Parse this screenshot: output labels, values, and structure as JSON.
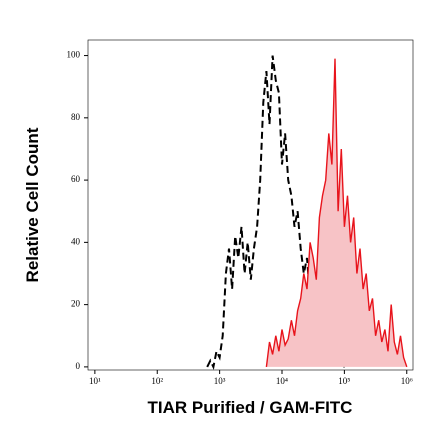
{
  "chart_data": {
    "type": "line",
    "xlabel": "TIAR Purified / GAM-FITC",
    "ylabel": "Relative Cell Count",
    "xscale": "log",
    "xlim": [
      7.76,
      1259000
    ],
    "ylim": [
      -1,
      105
    ],
    "xticks": [
      {
        "value": 10,
        "label": "10¹"
      },
      {
        "value": 100,
        "label": "10²"
      },
      {
        "value": 1000,
        "label": "10³"
      },
      {
        "value": 10000,
        "label": "10⁴"
      },
      {
        "value": 100000,
        "label": "10⁵"
      },
      {
        "value": 1000000,
        "label": "10⁶"
      }
    ],
    "yticks": [
      0,
      20,
      40,
      60,
      80,
      100
    ],
    "series": [
      {
        "color": "#000000",
        "style": "dashed",
        "fill": false,
        "x": [
          631,
          708,
          794,
          891,
          1000,
          1122,
          1259,
          1413,
          1585,
          1778,
          1995,
          2239,
          2512,
          2818,
          3162,
          3548,
          3981,
          4467,
          5012,
          5623,
          6310,
          7079,
          7943,
          8913,
          10000,
          11220,
          12589,
          14125,
          15849,
          17783,
          19953,
          22387,
          25119,
          28184,
          31623,
          35481,
          39811,
          44668,
          50119,
          56234,
          63096,
          70795,
          79433,
          89125,
          100000
        ],
        "values": [
          0,
          2,
          0,
          5,
          3,
          10,
          30,
          38,
          25,
          42,
          35,
          45,
          30,
          40,
          28,
          38,
          45,
          60,
          85,
          95,
          78,
          100,
          92,
          88,
          65,
          75,
          60,
          55,
          45,
          50,
          38,
          30,
          35,
          22,
          25,
          15,
          18,
          10,
          12,
          5,
          8,
          3,
          2,
          0,
          0
        ]
      },
      {
        "color": "#e8141c",
        "fill_color": "#f7c3c6",
        "style": "solid",
        "fill": true,
        "x": [
          5623,
          6310,
          7079,
          7943,
          8913,
          10000,
          11220,
          12589,
          14125,
          15849,
          17783,
          19953,
          22387,
          25119,
          28184,
          31623,
          35481,
          39811,
          44668,
          50119,
          56234,
          63096,
          70795,
          79433,
          89125,
          100000,
          112202,
          125893,
          141254,
          158489,
          177828,
          199526,
          223872,
          251189,
          281838,
          316228,
          354813,
          398107,
          446684,
          501187,
          562341,
          630957,
          707946,
          794328,
          891251,
          1000000
        ],
        "values": [
          0,
          8,
          4,
          10,
          5,
          12,
          7,
          9,
          15,
          10,
          18,
          22,
          30,
          25,
          40,
          35,
          28,
          48,
          55,
          60,
          75,
          65,
          99,
          50,
          70,
          45,
          55,
          40,
          48,
          30,
          38,
          25,
          30,
          18,
          22,
          10,
          15,
          8,
          12,
          5,
          20,
          8,
          4,
          10,
          3,
          0
        ]
      }
    ]
  }
}
